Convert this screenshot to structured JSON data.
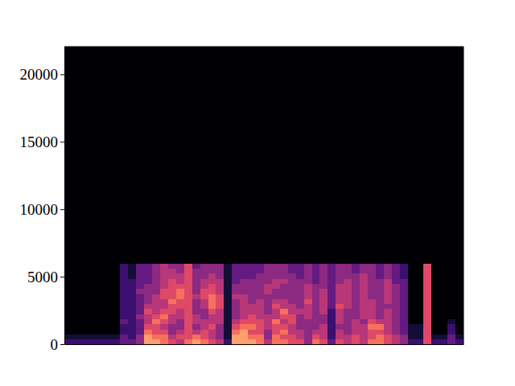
{
  "chart_data": {
    "type": "heatmap",
    "xlim": [
      0,
      50
    ],
    "ylim": [
      0,
      22050
    ],
    "yticks": [
      0,
      5000,
      10000,
      15000,
      20000
    ],
    "zlim": [
      0,
      10
    ],
    "grid": false,
    "tick_labels": "y",
    "x_bins": [
      0,
      1,
      2,
      3,
      4,
      5,
      6,
      7,
      8,
      9,
      10,
      11,
      12,
      13,
      14,
      15,
      16,
      17,
      18,
      19,
      20,
      21,
      22,
      23,
      24,
      25,
      26,
      27,
      28,
      29,
      30,
      31,
      32,
      33,
      34,
      35,
      36,
      37,
      38,
      39,
      40,
      41,
      42,
      43,
      44,
      45,
      46,
      47,
      48,
      49,
      50
    ],
    "y_bins": [
      0,
      375,
      750,
      1125,
      1500,
      1875,
      2250,
      2625,
      3000,
      3375,
      3750,
      4125,
      4500,
      4875,
      5250,
      5625,
      6000,
      22050
    ],
    "z": [
      [
        2,
        1,
        0,
        0,
        0,
        0,
        0,
        0,
        0,
        0,
        0,
        0,
        0,
        0,
        0,
        0,
        0
      ],
      [
        2,
        1,
        0,
        0,
        0,
        0,
        0,
        0,
        0,
        0,
        0,
        0,
        0,
        0,
        0,
        0,
        0
      ],
      [
        2,
        1,
        0,
        0,
        0,
        0,
        0,
        0,
        0,
        0,
        0,
        0,
        0,
        0,
        0,
        0,
        0
      ],
      [
        2,
        1,
        0,
        0,
        0,
        0,
        0,
        0,
        0,
        0,
        0,
        0,
        0,
        0,
        0,
        0,
        0
      ],
      [
        2,
        1,
        0,
        0,
        0,
        0,
        0,
        0,
        0,
        0,
        0,
        0,
        0,
        0,
        0,
        0,
        0
      ],
      [
        2,
        1,
        0,
        0,
        0,
        0,
        0,
        0,
        0,
        0,
        0,
        0,
        0,
        0,
        0,
        0,
        0
      ],
      [
        2,
        1,
        0,
        0,
        0,
        0,
        0,
        0,
        0,
        0,
        0,
        0,
        0,
        0,
        0,
        0,
        0
      ],
      [
        3,
        3,
        2,
        2,
        3,
        2,
        2,
        2,
        2,
        2,
        2,
        2,
        2,
        2,
        2,
        2,
        0
      ],
      [
        3,
        2,
        2,
        2,
        2,
        2,
        2,
        2,
        2,
        2,
        2,
        2,
        2,
        1,
        1,
        1,
        0
      ],
      [
        4,
        4,
        3,
        3,
        3,
        4,
        3,
        3,
        3,
        3,
        4,
        3,
        3,
        3,
        3,
        3,
        0
      ],
      [
        8,
        8,
        7,
        6,
        5,
        5,
        6,
        5,
        4,
        4,
        4,
        4,
        3,
        3,
        3,
        3,
        0
      ],
      [
        8,
        7,
        6,
        6,
        7,
        6,
        5,
        5,
        5,
        5,
        4,
        4,
        4,
        4,
        4,
        4,
        0
      ],
      [
        7,
        7,
        6,
        5,
        6,
        7,
        6,
        5,
        5,
        6,
        6,
        5,
        5,
        5,
        5,
        5,
        0
      ],
      [
        6,
        5,
        4,
        4,
        5,
        5,
        6,
        6,
        7,
        6,
        6,
        6,
        6,
        5,
        5,
        4,
        0
      ],
      [
        5,
        6,
        5,
        4,
        4,
        5,
        5,
        6,
        6,
        7,
        7,
        6,
        5,
        5,
        4,
        4,
        0
      ],
      [
        7,
        6,
        6,
        6,
        6,
        6,
        6,
        6,
        6,
        6,
        6,
        6,
        6,
        6,
        6,
        6,
        0
      ],
      [
        8,
        7,
        5,
        4,
        5,
        5,
        4,
        4,
        4,
        5,
        4,
        4,
        4,
        4,
        4,
        3,
        0
      ],
      [
        7,
        6,
        6,
        5,
        5,
        4,
        4,
        5,
        5,
        6,
        6,
        5,
        5,
        4,
        4,
        4,
        0
      ],
      [
        6,
        5,
        5,
        6,
        5,
        5,
        6,
        7,
        7,
        7,
        6,
        6,
        5,
        5,
        4,
        4,
        0
      ],
      [
        5,
        4,
        4,
        4,
        5,
        5,
        5,
        6,
        6,
        6,
        5,
        5,
        5,
        4,
        4,
        4,
        0
      ],
      [
        2,
        1,
        1,
        1,
        1,
        1,
        1,
        1,
        1,
        1,
        1,
        1,
        1,
        1,
        1,
        1,
        0
      ],
      [
        8,
        8,
        7,
        6,
        5,
        4,
        4,
        4,
        4,
        5,
        4,
        4,
        3,
        3,
        3,
        3,
        0
      ],
      [
        8,
        8,
        8,
        7,
        6,
        5,
        5,
        5,
        5,
        5,
        4,
        4,
        4,
        3,
        3,
        3,
        0
      ],
      [
        8,
        7,
        6,
        7,
        6,
        6,
        5,
        5,
        4,
        4,
        4,
        4,
        4,
        3,
        3,
        3,
        0
      ],
      [
        7,
        7,
        6,
        6,
        6,
        5,
        5,
        5,
        5,
        4,
        4,
        4,
        4,
        4,
        3,
        3,
        0
      ],
      [
        5,
        4,
        4,
        5,
        5,
        5,
        4,
        4,
        4,
        4,
        5,
        5,
        4,
        4,
        4,
        4,
        0
      ],
      [
        7,
        7,
        6,
        6,
        7,
        5,
        5,
        6,
        5,
        4,
        4,
        5,
        5,
        4,
        4,
        4,
        0
      ],
      [
        7,
        6,
        7,
        6,
        5,
        6,
        7,
        5,
        5,
        4,
        4,
        4,
        5,
        4,
        4,
        4,
        0
      ],
      [
        6,
        6,
        5,
        5,
        6,
        6,
        5,
        5,
        4,
        4,
        4,
        4,
        4,
        4,
        3,
        3,
        0
      ],
      [
        6,
        5,
        5,
        4,
        4,
        4,
        5,
        4,
        4,
        4,
        4,
        4,
        4,
        3,
        3,
        3,
        0
      ],
      [
        4,
        4,
        4,
        4,
        4,
        5,
        5,
        5,
        6,
        5,
        5,
        5,
        4,
        4,
        4,
        4,
        0
      ],
      [
        7,
        6,
        5,
        4,
        4,
        4,
        4,
        4,
        4,
        4,
        4,
        4,
        3,
        3,
        3,
        3,
        0
      ],
      [
        6,
        5,
        5,
        5,
        4,
        4,
        5,
        5,
        5,
        5,
        5,
        4,
        4,
        4,
        4,
        4,
        0
      ],
      [
        3,
        2,
        2,
        2,
        2,
        2,
        2,
        3,
        3,
        3,
        3,
        3,
        3,
        3,
        3,
        3,
        0
      ],
      [
        6,
        5,
        5,
        4,
        5,
        5,
        5,
        6,
        5,
        5,
        5,
        5,
        4,
        4,
        4,
        4,
        0
      ],
      [
        5,
        5,
        4,
        4,
        4,
        4,
        4,
        5,
        5,
        5,
        5,
        5,
        5,
        4,
        4,
        4,
        0
      ],
      [
        6,
        6,
        5,
        5,
        5,
        4,
        4,
        4,
        4,
        4,
        4,
        4,
        4,
        4,
        3,
        3,
        0
      ],
      [
        5,
        5,
        5,
        5,
        4,
        5,
        5,
        5,
        5,
        5,
        5,
        5,
        5,
        5,
        4,
        4,
        0
      ],
      [
        7,
        6,
        6,
        7,
        6,
        5,
        5,
        5,
        5,
        4,
        4,
        4,
        4,
        4,
        4,
        4,
        0
      ],
      [
        7,
        7,
        6,
        7,
        5,
        4,
        4,
        4,
        4,
        4,
        4,
        4,
        4,
        3,
        3,
        3,
        0
      ],
      [
        6,
        6,
        5,
        5,
        5,
        5,
        5,
        4,
        5,
        5,
        5,
        5,
        5,
        4,
        4,
        4,
        0
      ],
      [
        5,
        5,
        4,
        4,
        4,
        4,
        4,
        4,
        4,
        4,
        4,
        4,
        3,
        3,
        3,
        3,
        0
      ],
      [
        4,
        4,
        3,
        3,
        3,
        3,
        3,
        3,
        3,
        3,
        3,
        3,
        3,
        2,
        2,
        2,
        0
      ],
      [
        2,
        1,
        1,
        1,
        0,
        0,
        0,
        0,
        0,
        0,
        0,
        0,
        0,
        0,
        0,
        0,
        0
      ],
      [
        2,
        1,
        1,
        1,
        0,
        0,
        0,
        0,
        0,
        0,
        0,
        0,
        0,
        0,
        0,
        0,
        0
      ],
      [
        6,
        6,
        6,
        6,
        6,
        6,
        6,
        6,
        6,
        6,
        6,
        6,
        6,
        6,
        6,
        6,
        0
      ],
      [
        2,
        1,
        0,
        0,
        0,
        0,
        0,
        0,
        0,
        0,
        0,
        0,
        0,
        0,
        0,
        0,
        0
      ],
      [
        2,
        1,
        0,
        0,
        0,
        0,
        0,
        0,
        0,
        0,
        0,
        0,
        0,
        0,
        0,
        0,
        0
      ],
      [
        3,
        3,
        2,
        2,
        1,
        0,
        0,
        0,
        0,
        0,
        0,
        0,
        0,
        0,
        0,
        0,
        0
      ],
      [
        2,
        1,
        0,
        0,
        0,
        0,
        0,
        0,
        0,
        0,
        0,
        0,
        0,
        0,
        0,
        0,
        0
      ]
    ]
  }
}
